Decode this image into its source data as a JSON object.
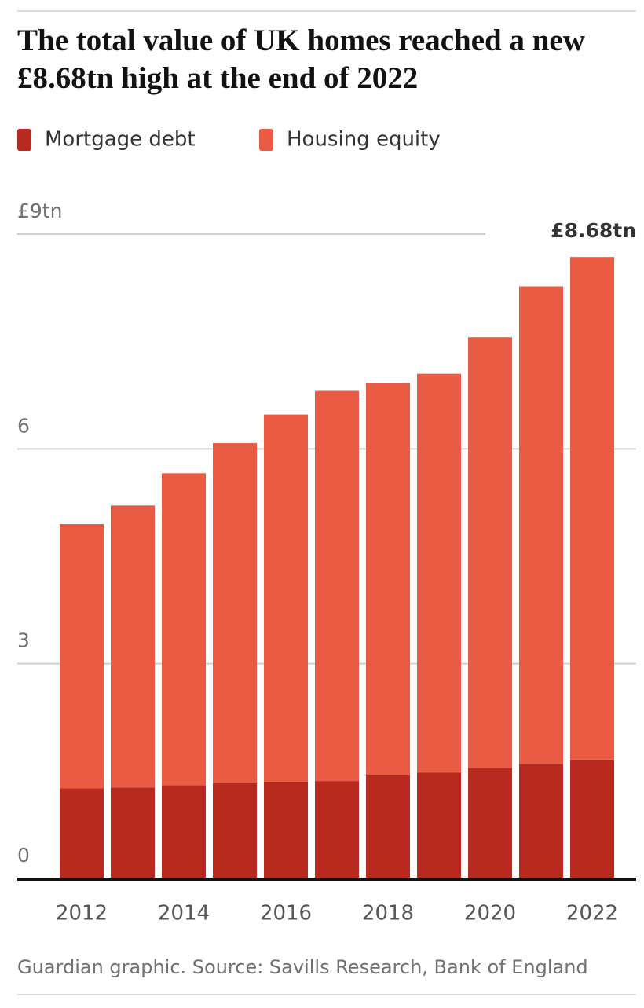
{
  "chart_data": {
    "type": "stacked-bar",
    "title": "The total value of UK homes reached a new £8.68tn high at the end of 2022",
    "categories": [
      "2012",
      null,
      "2014",
      null,
      "2016",
      null,
      "2018",
      null,
      "2020",
      null,
      "2022"
    ],
    "series": [
      {
        "name": "Mortgage debt",
        "color": "#b8291f",
        "values": [
          1.26,
          1.27,
          1.3,
          1.33,
          1.35,
          1.36,
          1.44,
          1.48,
          1.54,
          1.6,
          1.66
        ]
      },
      {
        "name": "Housing equity",
        "color": "#e95b43",
        "values": [
          3.69,
          3.94,
          4.36,
          4.75,
          5.13,
          5.45,
          5.48,
          5.57,
          6.02,
          6.67,
          7.02
        ]
      }
    ],
    "ylim": [
      0,
      9
    ],
    "yticks": [
      0,
      3,
      6,
      {
        "value": 9,
        "label": "£9tn"
      }
    ],
    "grid": true,
    "annotation": "£8.68tn",
    "source": "Guardian graphic. Source: Savills Research, Bank of England"
  }
}
